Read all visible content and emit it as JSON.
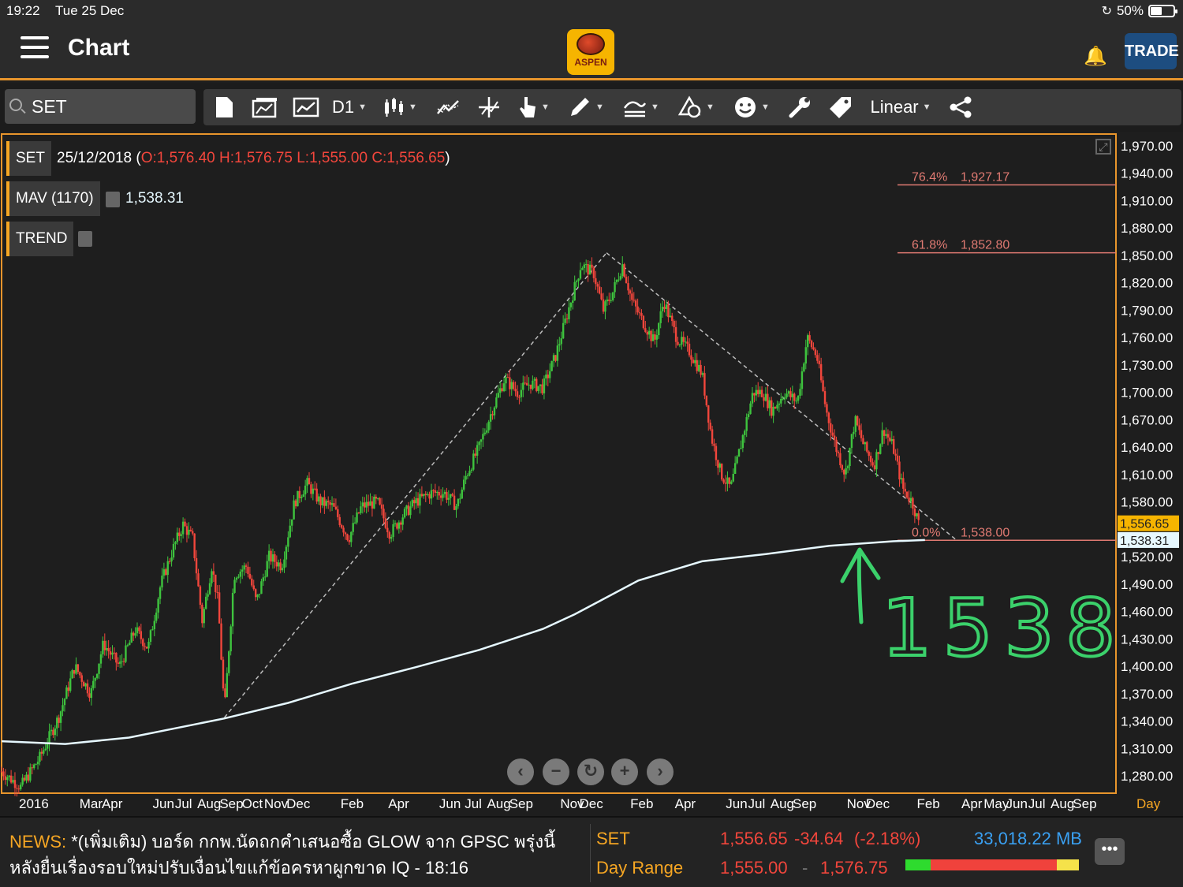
{
  "status": {
    "time": "19:22",
    "date": "Tue 25 Dec",
    "battery": "50%"
  },
  "header": {
    "title": "Chart",
    "logo_text": "ASPEN",
    "trade_label": "TRADE"
  },
  "toolbar": {
    "symbol_value": "SET",
    "timeframe": "D1",
    "scale": "Linear",
    "icons": [
      "new-document-icon",
      "open-folder-icon",
      "chart-icon",
      "candlestick-type-icon",
      "indicator-icon",
      "crosshair-icon",
      "pointer-icon",
      "pencil-draw-icon",
      "fibonacci-icon",
      "shapes-icon",
      "emoji-icon",
      "wrench-icon",
      "tag-icon",
      "share-icon"
    ]
  },
  "legend": {
    "symbol": "SET",
    "date": "25/12/2018",
    "ohlc_open": "(",
    "ohlc": "O:1,576.40 H:1,576.75 L:1,555.00 C:1,556.65",
    "ohlc_close": ")",
    "mav_label": "MAV (1170)",
    "mav_value": "1,538.31",
    "trend_label": "TREND"
  },
  "chart_data": {
    "type": "candlestick",
    "symbol": "SET",
    "timeframe": "D1",
    "scale": "linear",
    "ylim": [
      1262,
      1982
    ],
    "y_ticks": [
      "1,970.00",
      "1,940.00",
      "1,910.00",
      "1,880.00",
      "1,850.00",
      "1,820.00",
      "1,790.00",
      "1,760.00",
      "1,730.00",
      "1,700.00",
      "1,670.00",
      "1,640.00",
      "1,610.00",
      "1,580.00",
      "1,520.00",
      "1,490.00",
      "1,460.00",
      "1,430.00",
      "1,400.00",
      "1,370.00",
      "1,340.00",
      "1,310.00",
      "1,280.00"
    ],
    "y_tick_values": [
      1970,
      1940,
      1910,
      1880,
      1850,
      1820,
      1790,
      1760,
      1730,
      1700,
      1670,
      1640,
      1610,
      1580,
      1520,
      1490,
      1460,
      1430,
      1400,
      1370,
      1340,
      1310,
      1280
    ],
    "x_ticks": [
      "2016",
      "Mar",
      "Apr",
      "Jun",
      "Jul",
      "Aug",
      "Sep",
      "Oct",
      "Nov",
      "Dec",
      "Feb",
      "Apr",
      "Jun",
      "Jul",
      "Aug",
      "Sep",
      "Nov",
      "Dec",
      "Feb",
      "Apr",
      "Jun",
      "Jul",
      "Aug",
      "Sep",
      "Nov",
      "Dec",
      "Feb",
      "Apr",
      "May",
      "Jun",
      "Jul",
      "Aug",
      "Sep"
    ],
    "x_tick_index": [
      0,
      1.9,
      2.6,
      4.2,
      4.9,
      5.6,
      6.3,
      7,
      7.7,
      8.4,
      10.1,
      11.6,
      13.2,
      14,
      14.7,
      15.4,
      17,
      17.6,
      19.2,
      20.6,
      22.2,
      22.9,
      23.6,
      24.3,
      26,
      26.6,
      28.2,
      29.6,
      30.3,
      31,
      31.7,
      32.4,
      33.1
    ],
    "x_range": [
      0,
      35
    ],
    "x_axis_unit": "Day",
    "last_price": "1,556.65",
    "last_price_value": 1556.65,
    "mav_tag": "1,538.31",
    "mav_tag_value": 1538.31,
    "price_path": [
      [
        0,
        1285
      ],
      [
        0.6,
        1268
      ],
      [
        1.2,
        1300
      ],
      [
        1.8,
        1345
      ],
      [
        2.3,
        1400
      ],
      [
        2.8,
        1370
      ],
      [
        3.2,
        1425
      ],
      [
        3.7,
        1400
      ],
      [
        4.2,
        1440
      ],
      [
        4.6,
        1420
      ],
      [
        5.0,
        1490
      ],
      [
        5.4,
        1530
      ],
      [
        5.7,
        1555
      ],
      [
        6.0,
        1540
      ],
      [
        6.3,
        1450
      ],
      [
        6.6,
        1510
      ],
      [
        6.8,
        1470
      ],
      [
        7.0,
        1350
      ],
      [
        7.3,
        1500
      ],
      [
        7.7,
        1510
      ],
      [
        8.0,
        1470
      ],
      [
        8.4,
        1520
      ],
      [
        8.8,
        1510
      ],
      [
        9.2,
        1580
      ],
      [
        9.6,
        1600
      ],
      [
        10.0,
        1580
      ],
      [
        10.4,
        1575
      ],
      [
        10.9,
        1540
      ],
      [
        11.3,
        1575
      ],
      [
        11.8,
        1580
      ],
      [
        12.2,
        1545
      ],
      [
        12.6,
        1565
      ],
      [
        13.0,
        1580
      ],
      [
        13.5,
        1590
      ],
      [
        13.9,
        1590
      ],
      [
        14.3,
        1575
      ],
      [
        14.6,
        1610
      ],
      [
        15.0,
        1640
      ],
      [
        15.4,
        1680
      ],
      [
        15.8,
        1715
      ],
      [
        16.2,
        1700
      ],
      [
        16.6,
        1710
      ],
      [
        17.0,
        1705
      ],
      [
        17.4,
        1740
      ],
      [
        17.8,
        1790
      ],
      [
        18.2,
        1840
      ],
      [
        18.6,
        1830
      ],
      [
        18.9,
        1790
      ],
      [
        19.2,
        1810
      ],
      [
        19.5,
        1840
      ],
      [
        19.8,
        1800
      ],
      [
        20.1,
        1780
      ],
      [
        20.5,
        1755
      ],
      [
        20.8,
        1800
      ],
      [
        21.2,
        1760
      ],
      [
        21.6,
        1745
      ],
      [
        22.0,
        1720
      ],
      [
        22.3,
        1650
      ],
      [
        22.6,
        1610
      ],
      [
        22.9,
        1595
      ],
      [
        23.2,
        1640
      ],
      [
        23.6,
        1700
      ],
      [
        23.9,
        1700
      ],
      [
        24.2,
        1680
      ],
      [
        24.6,
        1700
      ],
      [
        25.0,
        1690
      ],
      [
        25.3,
        1760
      ],
      [
        25.6,
        1740
      ],
      [
        25.9,
        1680
      ],
      [
        26.2,
        1640
      ],
      [
        26.5,
        1610
      ],
      [
        26.8,
        1670
      ],
      [
        27.1,
        1640
      ],
      [
        27.4,
        1620
      ],
      [
        27.7,
        1660
      ],
      [
        28.0,
        1640
      ],
      [
        28.3,
        1595
      ],
      [
        28.6,
        1580
      ],
      [
        28.8,
        1556.65
      ]
    ],
    "mav_path": [
      [
        0,
        1318
      ],
      [
        2,
        1315
      ],
      [
        4,
        1322
      ],
      [
        6,
        1336
      ],
      [
        7,
        1343
      ],
      [
        9,
        1360
      ],
      [
        11,
        1381
      ],
      [
        13,
        1399
      ],
      [
        15,
        1418
      ],
      [
        17,
        1441
      ],
      [
        18,
        1457
      ],
      [
        20,
        1494
      ],
      [
        22,
        1515
      ],
      [
        24,
        1523
      ],
      [
        26,
        1532
      ],
      [
        28,
        1537
      ],
      [
        29,
        1538.31
      ]
    ],
    "trend_lines": [
      [
        [
          7,
          1344
        ],
        [
          19.0,
          1852.8
        ]
      ],
      [
        [
          19.0,
          1852.8
        ],
        [
          30.0,
          1538
        ]
      ]
    ],
    "fibonacci": [
      {
        "level": "76.4%",
        "value_label": "1,927.17",
        "value": 1927.17
      },
      {
        "level": "61.8%",
        "value_label": "1,852.80",
        "value": 1852.8
      },
      {
        "level": "0.0%",
        "value_label": "1,538.00",
        "value": 1538.0
      }
    ],
    "annotation": "1538",
    "colors": {
      "up": "#3ec43e",
      "down": "#f2463c",
      "mav": "#e6f8ff",
      "fib": "#e07a72",
      "trend": "#bdbdbd",
      "annotation": "#3bd16b",
      "last_price_tag": "#f6b400",
      "mav_tag": "#e6f8ff"
    }
  },
  "bottom": {
    "news_label": "NEWS:",
    "news_text": "*(เพิ่มเติม) บอร์ด กกพ.นัดถกคำเสนอซื้อ GLOW จาก GPSC พรุ่งนี้ หลังยื่นเรื่องรอบใหม่ปรับเงื่อนไขแก้ข้อครหาผูกขาด  IQ - 18:16",
    "quote_symbol": "SET",
    "quote_price": "1,556.65",
    "quote_change": "-34.64",
    "quote_change_pct": "(-2.18%)",
    "quote_volume": "33,018.22 MB",
    "day_range_label": "Day Range",
    "day_low": "1,555.00",
    "day_sep": "-",
    "day_high": "1,576.75",
    "range_colors": {
      "low": "#2edb2e",
      "mid": "#f0423c",
      "high": "#f5e24a"
    }
  }
}
